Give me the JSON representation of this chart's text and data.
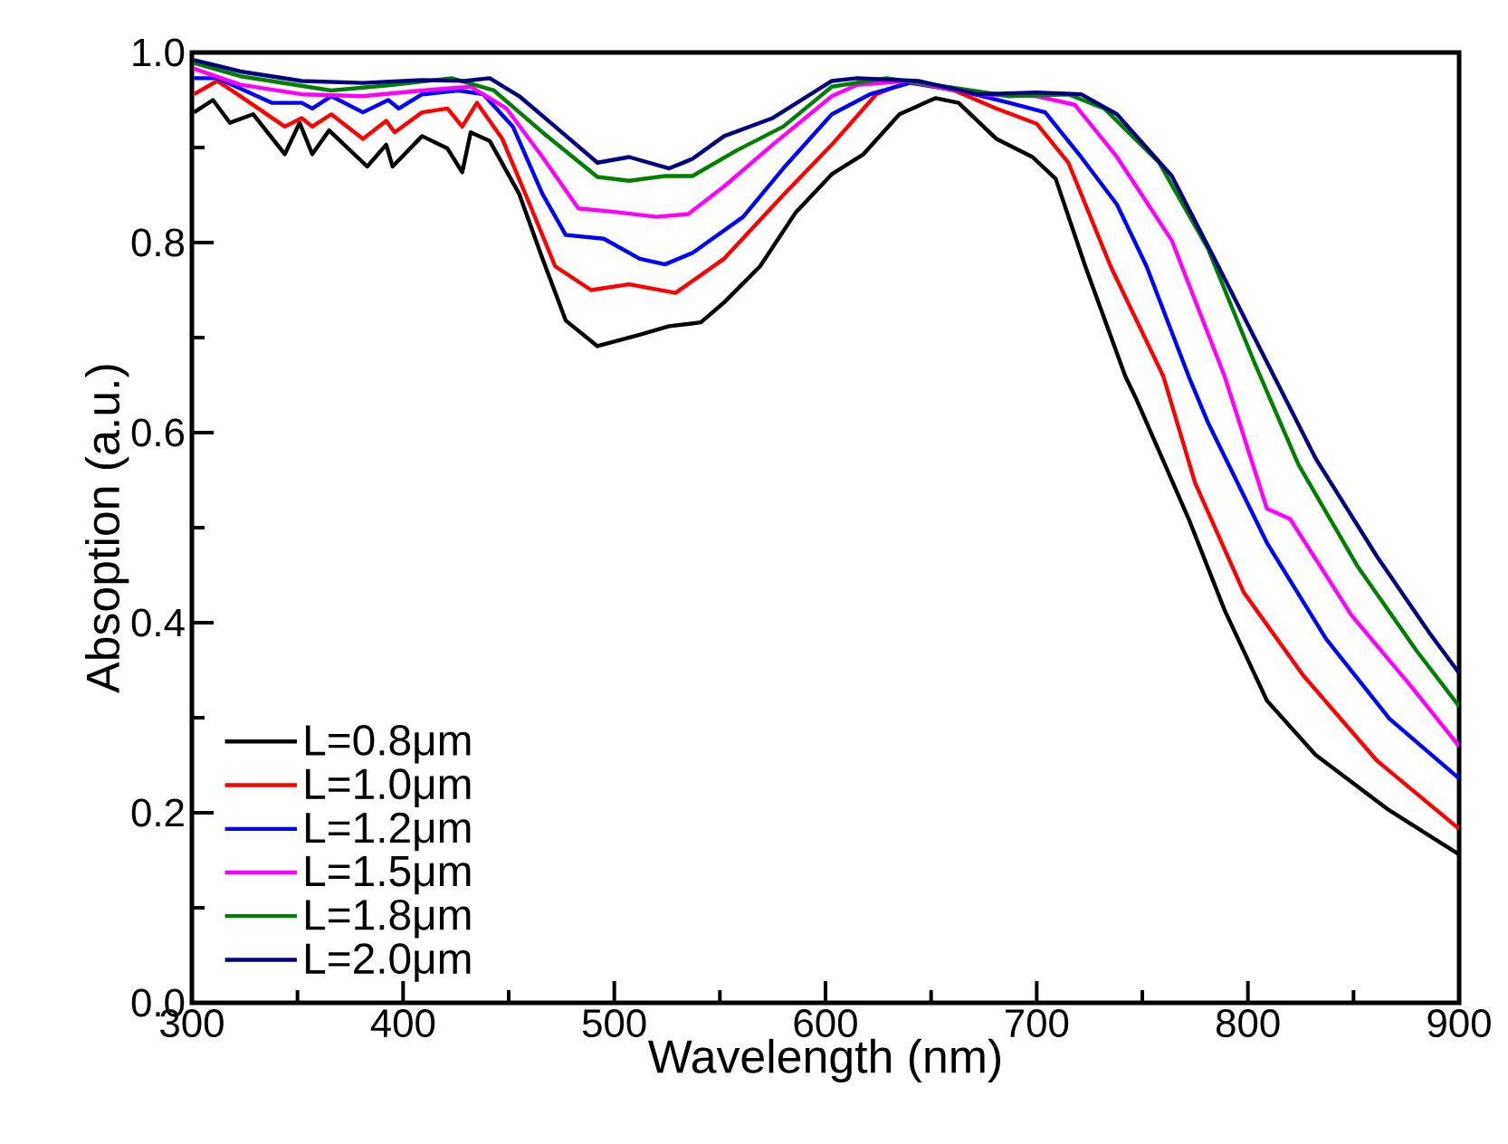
{
  "chart_data": {
    "type": "line",
    "xlabel": "Wavelength (nm)",
    "ylabel": "Absoption (a.u.)",
    "xlim": [
      300,
      900
    ],
    "ylim": [
      0,
      1
    ],
    "xticks": [
      300,
      400,
      500,
      600,
      700,
      800,
      900
    ],
    "yticks": [
      {
        "value": 0,
        "label": "0.0"
      },
      0.2,
      0.4,
      0.6,
      0.8,
      {
        "value": 1,
        "label": "1.0"
      }
    ],
    "grid": false,
    "legend": "bottom left",
    "marker": "none",
    "line_style": "solid",
    "series": [
      {
        "name": "L=0.8μm",
        "color": "#000000",
        "x": [
          301,
          310,
          318,
          329,
          344,
          351,
          357,
          365,
          383,
          392,
          395,
          409,
          421,
          428,
          432,
          441,
          455,
          466,
          477,
          492,
          512,
          526,
          541,
          552,
          569,
          586,
          603,
          618,
          635,
          652,
          663,
          681,
          698,
          709,
          723,
          742,
          747,
          772,
          789,
          809,
          832,
          866,
          900
        ],
        "values": [
          0.937,
          0.95,
          0.926,
          0.935,
          0.893,
          0.926,
          0.893,
          0.918,
          0.88,
          0.903,
          0.88,
          0.912,
          0.899,
          0.874,
          0.916,
          0.907,
          0.851,
          0.783,
          0.718,
          0.691,
          0.703,
          0.712,
          0.716,
          0.737,
          0.775,
          0.832,
          0.872,
          0.893,
          0.935,
          0.952,
          0.947,
          0.909,
          0.89,
          0.867,
          0.775,
          0.659,
          0.636,
          0.509,
          0.413,
          0.318,
          0.261,
          0.204,
          0.156
        ]
      },
      {
        "name": "L=1.0μm",
        "color": "#ff0000",
        "x": [
          301,
          312,
          323,
          344,
          352,
          357,
          366,
          381,
          392,
          396,
          409,
          421,
          428,
          435,
          447,
          460,
          472,
          489,
          507,
          529,
          552,
          580,
          603,
          624,
          640,
          661,
          681,
          700,
          715,
          735,
          760,
          775,
          798,
          826,
          861,
          900
        ],
        "values": [
          0.956,
          0.97,
          0.954,
          0.922,
          0.931,
          0.922,
          0.935,
          0.909,
          0.928,
          0.916,
          0.937,
          0.941,
          0.922,
          0.947,
          0.909,
          0.84,
          0.775,
          0.75,
          0.756,
          0.747,
          0.783,
          0.85,
          0.903,
          0.956,
          0.97,
          0.96,
          0.941,
          0.925,
          0.884,
          0.775,
          0.659,
          0.547,
          0.432,
          0.345,
          0.255,
          0.183
        ]
      },
      {
        "name": "L=1.2μm",
        "color": "#0000ff",
        "x": [
          301,
          312,
          338,
          352,
          357,
          366,
          381,
          393,
          398,
          409,
          426,
          438,
          452,
          466,
          477,
          495,
          512,
          524,
          537,
          561,
          580,
          603,
          621,
          640,
          663,
          687,
          704,
          721,
          738,
          752,
          772,
          781,
          809,
          837,
          867,
          900
        ],
        "values": [
          0.973,
          0.973,
          0.947,
          0.947,
          0.941,
          0.954,
          0.937,
          0.95,
          0.941,
          0.956,
          0.96,
          0.956,
          0.922,
          0.851,
          0.808,
          0.804,
          0.783,
          0.777,
          0.789,
          0.827,
          0.878,
          0.935,
          0.956,
          0.968,
          0.96,
          0.947,
          0.937,
          0.89,
          0.84,
          0.775,
          0.659,
          0.611,
          0.484,
          0.383,
          0.299,
          0.236
        ]
      },
      {
        "name": "L=1.5μm",
        "color": "#ff00ff",
        "x": [
          301,
          323,
          352,
          381,
          409,
          432,
          449,
          466,
          483,
          501,
          520,
          535,
          552,
          575,
          603,
          615,
          638,
          672,
          700,
          718,
          738,
          764,
          789,
          809,
          820,
          849,
          878,
          900
        ],
        "values": [
          0.983,
          0.966,
          0.956,
          0.954,
          0.96,
          0.964,
          0.941,
          0.89,
          0.836,
          0.832,
          0.827,
          0.83,
          0.859,
          0.903,
          0.954,
          0.966,
          0.97,
          0.956,
          0.954,
          0.945,
          0.89,
          0.802,
          0.659,
          0.52,
          0.509,
          0.408,
          0.331,
          0.27
        ]
      },
      {
        "name": "L=1.8μm",
        "color": "#008000",
        "x": [
          301,
          323,
          366,
          395,
          423,
          443,
          466,
          492,
          507,
          524,
          537,
          558,
          580,
          603,
          629,
          657,
          687,
          715,
          732,
          758,
          781,
          803,
          824,
          852,
          880,
          900
        ],
        "values": [
          0.989,
          0.975,
          0.96,
          0.966,
          0.973,
          0.96,
          0.916,
          0.869,
          0.865,
          0.87,
          0.87,
          0.897,
          0.922,
          0.964,
          0.973,
          0.964,
          0.954,
          0.956,
          0.941,
          0.884,
          0.794,
          0.674,
          0.566,
          0.459,
          0.37,
          0.312
        ]
      },
      {
        "name": "L=2.0μm",
        "color": "#000080",
        "x": [
          301,
          323,
          352,
          381,
          409,
          429,
          441,
          455,
          472,
          492,
          507,
          526,
          537,
          552,
          575,
          603,
          615,
          644,
          672,
          700,
          721,
          738,
          764,
          786,
          809,
          832,
          861,
          886,
          900
        ],
        "values": [
          0.992,
          0.98,
          0.97,
          0.968,
          0.971,
          0.97,
          0.973,
          0.954,
          0.922,
          0.884,
          0.89,
          0.878,
          0.888,
          0.912,
          0.931,
          0.97,
          0.973,
          0.97,
          0.956,
          0.958,
          0.956,
          0.935,
          0.87,
          0.775,
          0.674,
          0.573,
          0.47,
          0.389,
          0.347
        ]
      }
    ]
  }
}
